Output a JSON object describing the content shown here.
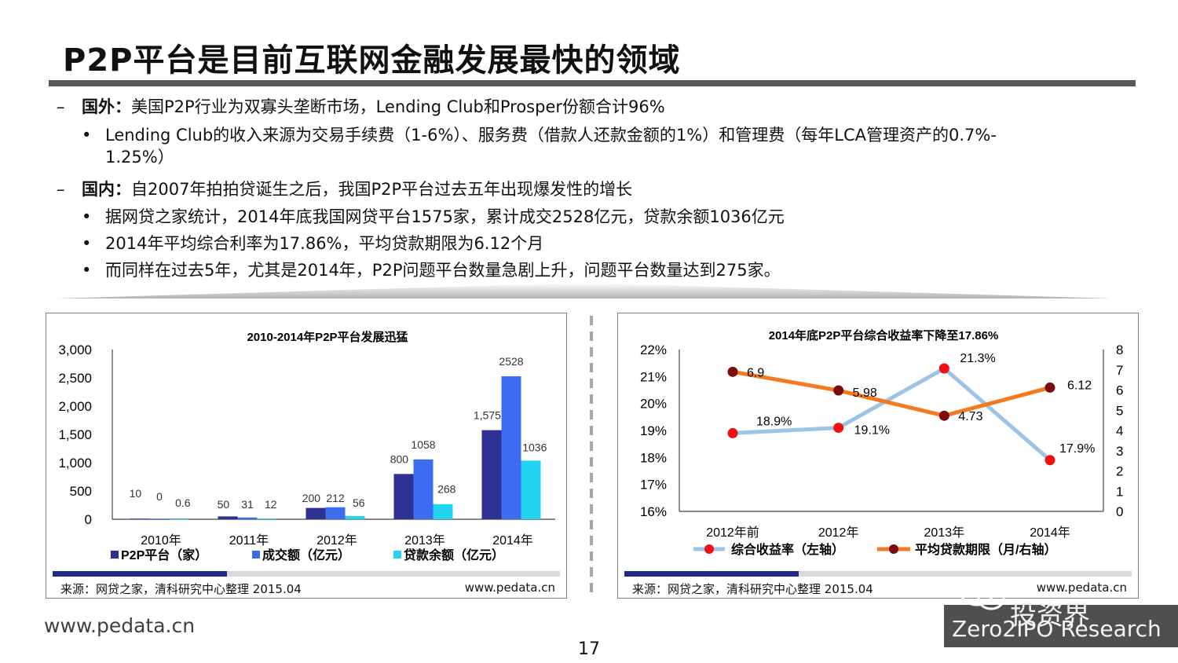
{
  "slide": {
    "title": "P2P平台是目前互联网金融发展最快的领域",
    "bullets": [
      {
        "lead": "国外：",
        "text": "美国P2P行业为双寡头垄断市场，Lending Club和Prosper份额合计96%"
      },
      {
        "text": "Lending Club的收入来源为交易手续费（1-6%）、服务费（借款人还款金额的1%）和管理费（每年LCA管理资产的0.7%-",
        "text2": "1.25%）"
      },
      {
        "lead": "国内：",
        "text": "自2007年拍拍贷诞生之后，我国P2P平台过去五年出现爆发性的增长"
      },
      {
        "text": "据网贷之家统计，2014年底我国网贷平台1575家，累计成交2528亿元，贷款余额1036亿元"
      },
      {
        "text": "2014年平均综合利率为17.86%，平均贷款期限为6.12个月"
      },
      {
        "text": "而同样在过去5年，尤其是2014年，P2P问题平台数量急剧上升，问题平台数量达到275家。"
      }
    ],
    "dash_glyph": "–",
    "dot_glyph": "•",
    "site_url": "www.pedata.cn",
    "page_number": "17",
    "watermark": {
      "cn": "投资界",
      "en": "Zero2IPO Research",
      "icon": "wechat-icon"
    }
  },
  "panels": {
    "left": {
      "source": "来源：网贷之家，清科研究中心整理 2015.04",
      "url": "www.pedata.cn"
    },
    "right": {
      "source": "来源：网贷之家，清科研究中心整理 2015.04",
      "url": "www.pedata.cn"
    }
  },
  "colors": {
    "p2p": "#2e3192",
    "volume": "#3d6cf0",
    "balance": "#22d3f4",
    "yield_line": "#9dc3e6",
    "yield_marker": "#ee1111",
    "term_line": "#f47a20",
    "term_marker": "#7a0d0d",
    "accent_bar": "#1f2b85"
  },
  "chart_data": [
    {
      "type": "bar",
      "title": "2010-2014年P2P平台发展迅猛",
      "categories": [
        "2010年",
        "2011年",
        "2012年",
        "2013年",
        "2014年"
      ],
      "series": [
        {
          "name": "P2P平台（家）",
          "values": [
            10,
            50,
            200,
            800,
            1575
          ],
          "labels": [
            "10",
            "50",
            "200",
            "800",
            "1,575"
          ]
        },
        {
          "name": "成交额（亿元）",
          "values": [
            0,
            31,
            212,
            1058,
            2528
          ],
          "labels": [
            "0",
            "31",
            "212",
            "1058",
            "2528"
          ]
        },
        {
          "name": "贷款余额（亿元）",
          "values": [
            0.6,
            12,
            56,
            268,
            1036
          ],
          "labels": [
            "0.6",
            "12",
            "56",
            "268",
            "1036"
          ]
        }
      ],
      "ylim": [
        0,
        3000
      ],
      "yticks": [
        "0",
        "500",
        "1,000",
        "1,500",
        "2,000",
        "2,500",
        "3,000"
      ],
      "legend": "bottom"
    },
    {
      "type": "line",
      "title": "2014年底P2P平台综合收益率下降至17.86%",
      "categories": [
        "2012年前",
        "2012年",
        "2013年",
        "2014年"
      ],
      "series": [
        {
          "name": "综合收益率（左轴）",
          "axis": "left",
          "values": [
            18.9,
            19.1,
            21.3,
            17.9
          ],
          "labels": [
            "18.9%",
            "19.1%",
            "21.3%",
            "17.9%"
          ]
        },
        {
          "name": "平均贷款期限（月/右轴）",
          "axis": "right",
          "values": [
            6.9,
            5.98,
            4.73,
            6.12
          ],
          "labels": [
            "6.9",
            "5.98",
            "4.73",
            "6.12"
          ]
        }
      ],
      "ylim_left": [
        16,
        22
      ],
      "yticks_left": [
        "16%",
        "17%",
        "18%",
        "19%",
        "20%",
        "21%",
        "22%"
      ],
      "ylim_right": [
        0,
        8
      ],
      "yticks_right": [
        "0",
        "1",
        "2",
        "3",
        "4",
        "5",
        "6",
        "7",
        "8"
      ],
      "legend": "bottom"
    }
  ]
}
